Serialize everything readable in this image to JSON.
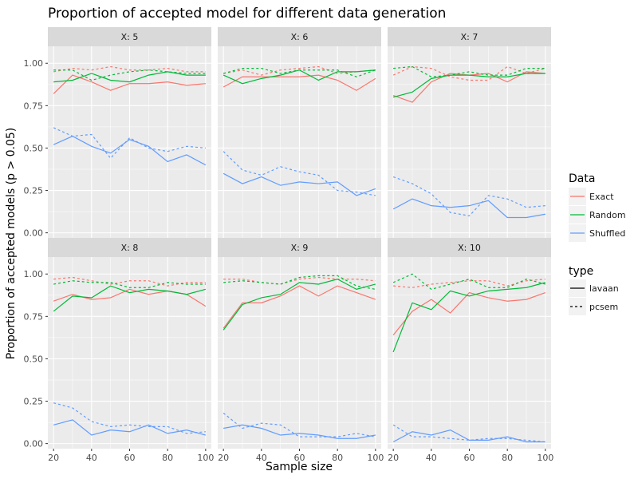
{
  "chart_data": {
    "type": "line",
    "title": "Proportion of accepted model for different data generation",
    "xlabel": "Sample size",
    "ylabel": "Proportion of accepted models (p > 0.05)",
    "xlim": [
      17,
      103
    ],
    "ylim": [
      -0.03,
      1.1
    ],
    "x_ticks": [
      20,
      40,
      60,
      80,
      100
    ],
    "y_ticks": [
      0.0,
      0.25,
      0.5,
      0.75,
      1.0
    ],
    "y_tick_labels": [
      "0.00",
      "0.25",
      "0.50",
      "0.75",
      "1.00"
    ],
    "x": [
      20,
      30,
      40,
      50,
      60,
      70,
      80,
      90,
      100
    ],
    "grid": true,
    "legend_placement": "right",
    "facet_prefix": "X: ",
    "legends": {
      "color": {
        "title": "Data",
        "entries": [
          {
            "name": "Exact",
            "color": "#F8766D"
          },
          {
            "name": "Random",
            "color": "#00BA38"
          },
          {
            "name": "Shuffled",
            "color": "#619CFF"
          }
        ]
      },
      "linetype": {
        "title": "type",
        "entries": [
          {
            "name": "lavaan",
            "style": "solid"
          },
          {
            "name": "pcsem",
            "style": "dashed"
          }
        ]
      }
    },
    "panels": [
      {
        "facet": "5",
        "series": [
          {
            "data": "Exact",
            "type": "lavaan",
            "values": [
              0.82,
              0.93,
              0.89,
              0.84,
              0.88,
              0.88,
              0.89,
              0.87,
              0.88
            ]
          },
          {
            "data": "Exact",
            "type": "pcsem",
            "values": [
              0.95,
              0.97,
              0.96,
              0.98,
              0.96,
              0.96,
              0.97,
              0.95,
              0.95
            ]
          },
          {
            "data": "Random",
            "type": "lavaan",
            "values": [
              0.89,
              0.9,
              0.94,
              0.9,
              0.89,
              0.93,
              0.95,
              0.93,
              0.93
            ]
          },
          {
            "data": "Random",
            "type": "pcsem",
            "values": [
              0.96,
              0.96,
              0.9,
              0.93,
              0.95,
              0.96,
              0.95,
              0.94,
              0.94
            ]
          },
          {
            "data": "Shuffled",
            "type": "lavaan",
            "values": [
              0.52,
              0.57,
              0.51,
              0.47,
              0.55,
              0.51,
              0.42,
              0.46,
              0.4
            ]
          },
          {
            "data": "Shuffled",
            "type": "pcsem",
            "values": [
              0.62,
              0.57,
              0.58,
              0.44,
              0.56,
              0.5,
              0.48,
              0.51,
              0.5
            ]
          }
        ]
      },
      {
        "facet": "6",
        "series": [
          {
            "data": "Exact",
            "type": "lavaan",
            "values": [
              0.86,
              0.92,
              0.92,
              0.92,
              0.92,
              0.93,
              0.9,
              0.84,
              0.91
            ]
          },
          {
            "data": "Exact",
            "type": "pcsem",
            "values": [
              0.94,
              0.96,
              0.93,
              0.96,
              0.97,
              0.98,
              0.94,
              0.95,
              0.96
            ]
          },
          {
            "data": "Random",
            "type": "lavaan",
            "values": [
              0.93,
              0.88,
              0.91,
              0.93,
              0.96,
              0.9,
              0.95,
              0.95,
              0.96
            ]
          },
          {
            "data": "Random",
            "type": "pcsem",
            "values": [
              0.94,
              0.97,
              0.97,
              0.94,
              0.96,
              0.96,
              0.96,
              0.92,
              0.96
            ]
          },
          {
            "data": "Shuffled",
            "type": "lavaan",
            "values": [
              0.35,
              0.29,
              0.33,
              0.28,
              0.3,
              0.29,
              0.3,
              0.22,
              0.26
            ]
          },
          {
            "data": "Shuffled",
            "type": "pcsem",
            "values": [
              0.48,
              0.37,
              0.34,
              0.39,
              0.36,
              0.34,
              0.25,
              0.24,
              0.22
            ]
          }
        ]
      },
      {
        "facet": "7",
        "series": [
          {
            "data": "Exact",
            "type": "lavaan",
            "values": [
              0.81,
              0.77,
              0.89,
              0.94,
              0.93,
              0.94,
              0.89,
              0.95,
              0.94
            ]
          },
          {
            "data": "Exact",
            "type": "pcsem",
            "values": [
              0.93,
              0.98,
              0.97,
              0.92,
              0.9,
              0.9,
              0.98,
              0.94,
              0.97
            ]
          },
          {
            "data": "Random",
            "type": "lavaan",
            "values": [
              0.8,
              0.83,
              0.91,
              0.93,
              0.93,
              0.92,
              0.92,
              0.94,
              0.94
            ]
          },
          {
            "data": "Random",
            "type": "pcsem",
            "values": [
              0.97,
              0.98,
              0.92,
              0.93,
              0.95,
              0.93,
              0.93,
              0.97,
              0.97
            ]
          },
          {
            "data": "Shuffled",
            "type": "lavaan",
            "values": [
              0.14,
              0.2,
              0.16,
              0.15,
              0.16,
              0.19,
              0.09,
              0.09,
              0.11
            ]
          },
          {
            "data": "Shuffled",
            "type": "pcsem",
            "values": [
              0.33,
              0.29,
              0.23,
              0.12,
              0.1,
              0.22,
              0.2,
              0.15,
              0.16
            ]
          }
        ]
      },
      {
        "facet": "8",
        "series": [
          {
            "data": "Exact",
            "type": "lavaan",
            "values": [
              0.84,
              0.88,
              0.85,
              0.86,
              0.91,
              0.88,
              0.9,
              0.88,
              0.81
            ]
          },
          {
            "data": "Exact",
            "type": "pcsem",
            "values": [
              0.97,
              0.98,
              0.96,
              0.94,
              0.96,
              0.96,
              0.93,
              0.95,
              0.95
            ]
          },
          {
            "data": "Random",
            "type": "lavaan",
            "values": [
              0.78,
              0.87,
              0.86,
              0.93,
              0.89,
              0.91,
              0.9,
              0.88,
              0.91
            ]
          },
          {
            "data": "Random",
            "type": "pcsem",
            "values": [
              0.94,
              0.96,
              0.95,
              0.95,
              0.92,
              0.92,
              0.95,
              0.94,
              0.94
            ]
          },
          {
            "data": "Shuffled",
            "type": "lavaan",
            "values": [
              0.11,
              0.14,
              0.05,
              0.08,
              0.07,
              0.11,
              0.06,
              0.08,
              0.05
            ]
          },
          {
            "data": "Shuffled",
            "type": "pcsem",
            "values": [
              0.24,
              0.21,
              0.13,
              0.1,
              0.11,
              0.1,
              0.1,
              0.06,
              0.07
            ]
          }
        ]
      },
      {
        "facet": "9",
        "series": [
          {
            "data": "Exact",
            "type": "lavaan",
            "values": [
              0.68,
              0.83,
              0.83,
              0.87,
              0.93,
              0.87,
              0.93,
              0.89,
              0.85
            ]
          },
          {
            "data": "Exact",
            "type": "pcsem",
            "values": [
              0.97,
              0.97,
              0.95,
              0.94,
              0.97,
              0.98,
              0.97,
              0.97,
              0.96
            ]
          },
          {
            "data": "Random",
            "type": "lavaan",
            "values": [
              0.67,
              0.82,
              0.86,
              0.88,
              0.95,
              0.94,
              0.97,
              0.91,
              0.94
            ]
          },
          {
            "data": "Random",
            "type": "pcsem",
            "values": [
              0.95,
              0.96,
              0.95,
              0.94,
              0.98,
              0.99,
              0.99,
              0.93,
              0.91
            ]
          },
          {
            "data": "Shuffled",
            "type": "lavaan",
            "values": [
              0.09,
              0.11,
              0.09,
              0.05,
              0.06,
              0.05,
              0.03,
              0.03,
              0.05
            ]
          },
          {
            "data": "Shuffled",
            "type": "pcsem",
            "values": [
              0.18,
              0.09,
              0.12,
              0.11,
              0.04,
              0.04,
              0.04,
              0.06,
              0.04
            ]
          }
        ]
      },
      {
        "facet": "10",
        "series": [
          {
            "data": "Exact",
            "type": "lavaan",
            "values": [
              0.64,
              0.78,
              0.85,
              0.77,
              0.89,
              0.86,
              0.84,
              0.85,
              0.89
            ]
          },
          {
            "data": "Exact",
            "type": "pcsem",
            "values": [
              0.93,
              0.92,
              0.94,
              0.95,
              0.96,
              0.96,
              0.93,
              0.96,
              0.97
            ]
          },
          {
            "data": "Random",
            "type": "lavaan",
            "values": [
              0.54,
              0.83,
              0.79,
              0.9,
              0.87,
              0.9,
              0.91,
              0.92,
              0.95
            ]
          },
          {
            "data": "Random",
            "type": "pcsem",
            "values": [
              0.95,
              1.0,
              0.91,
              0.94,
              0.97,
              0.92,
              0.92,
              0.97,
              0.94
            ]
          },
          {
            "data": "Shuffled",
            "type": "lavaan",
            "values": [
              0.01,
              0.07,
              0.05,
              0.08,
              0.02,
              0.02,
              0.04,
              0.01,
              0.01
            ]
          },
          {
            "data": "Shuffled",
            "type": "pcsem",
            "values": [
              0.11,
              0.04,
              0.04,
              0.03,
              0.02,
              0.03,
              0.03,
              0.02,
              0.01
            ]
          }
        ]
      }
    ]
  }
}
